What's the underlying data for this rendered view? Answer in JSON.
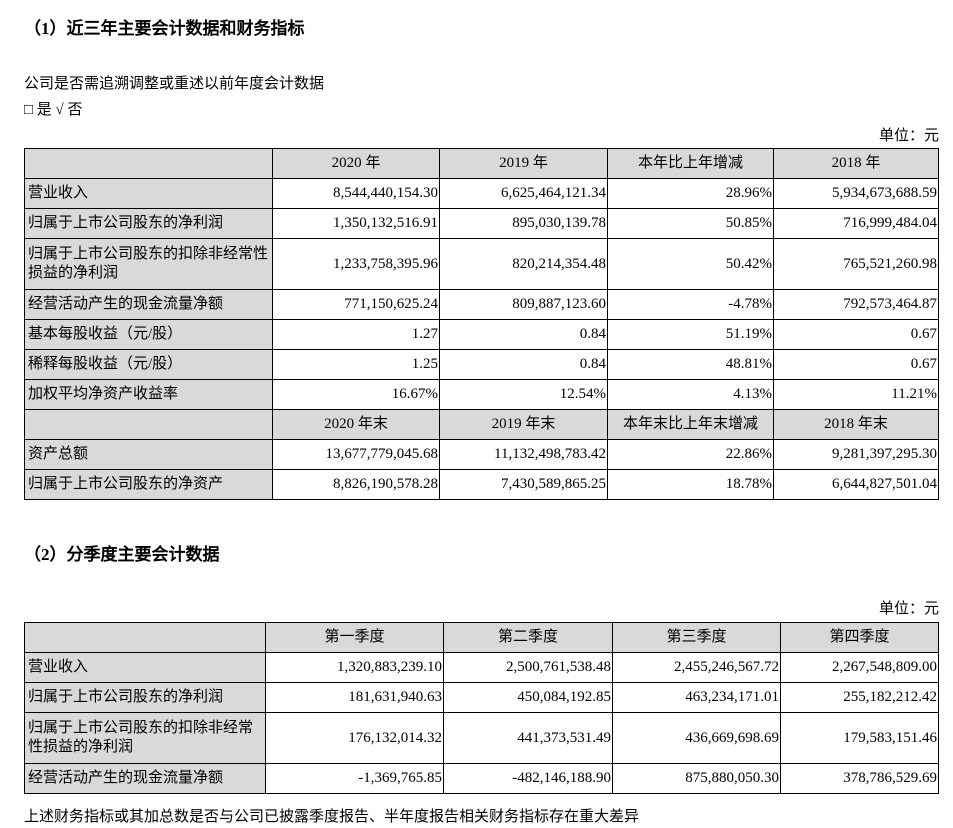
{
  "section1": {
    "title": "（1）近三年主要会计数据和财务指标",
    "question": "公司是否需追溯调整或重述以前年度会计数据",
    "options": "□ 是 √ 否",
    "unit": "单位：元",
    "header": [
      "",
      "2020 年",
      "2019 年",
      "本年比上年增减",
      "2018 年"
    ],
    "rows": [
      [
        "营业收入",
        "8,544,440,154.30",
        "6,625,464,121.34",
        "28.96%",
        "5,934,673,688.59"
      ],
      [
        "归属于上市公司股东的净利润",
        "1,350,132,516.91",
        "895,030,139.78",
        "50.85%",
        "716,999,484.04"
      ],
      [
        "归属于上市公司股东的扣除非经常性损益的净利润",
        "1,233,758,395.96",
        "820,214,354.48",
        "50.42%",
        "765,521,260.98"
      ],
      [
        "经营活动产生的现金流量净额",
        "771,150,625.24",
        "809,887,123.60",
        "-4.78%",
        "792,573,464.87"
      ],
      [
        "基本每股收益（元/股）",
        "1.27",
        "0.84",
        "51.19%",
        "0.67"
      ],
      [
        "稀释每股收益（元/股）",
        "1.25",
        "0.84",
        "48.81%",
        "0.67"
      ],
      [
        "加权平均净资产收益率",
        "16.67%",
        "12.54%",
        "4.13%",
        "11.21%"
      ]
    ],
    "header2": [
      "",
      "2020 年末",
      "2019 年末",
      "本年末比上年末增减",
      "2018 年末"
    ],
    "rows2": [
      [
        "资产总额",
        "13,677,779,045.68",
        "11,132,498,783.42",
        "22.86%",
        "9,281,397,295.30"
      ],
      [
        "归属于上市公司股东的净资产",
        "8,826,190,578.28",
        "7,430,589,865.25",
        "18.78%",
        "6,644,827,501.04"
      ]
    ]
  },
  "section2": {
    "title": "（2）分季度主要会计数据",
    "unit": "单位：元",
    "header": [
      "",
      "第一季度",
      "第二季度",
      "第三季度",
      "第四季度"
    ],
    "rows": [
      [
        "营业收入",
        "1,320,883,239.10",
        "2,500,761,538.48",
        "2,455,246,567.72",
        "2,267,548,809.00"
      ],
      [
        "归属于上市公司股东的净利润",
        "181,631,940.63",
        "450,084,192.85",
        "463,234,171.01",
        "255,182,212.42"
      ],
      [
        "归属于上市公司股东的扣除非经常性损益的净利润",
        "176,132,014.32",
        "441,373,531.49",
        "436,669,698.69",
        "179,583,151.46"
      ],
      [
        "经营活动产生的现金流量净额",
        "-1,369,765.85",
        "-482,146,188.90",
        "875,880,050.30",
        "378,786,529.69"
      ]
    ],
    "footnote": "上述财务指标或其加总数是否与公司已披露季度报告、半年度报告相关财务指标存在重大差异"
  }
}
